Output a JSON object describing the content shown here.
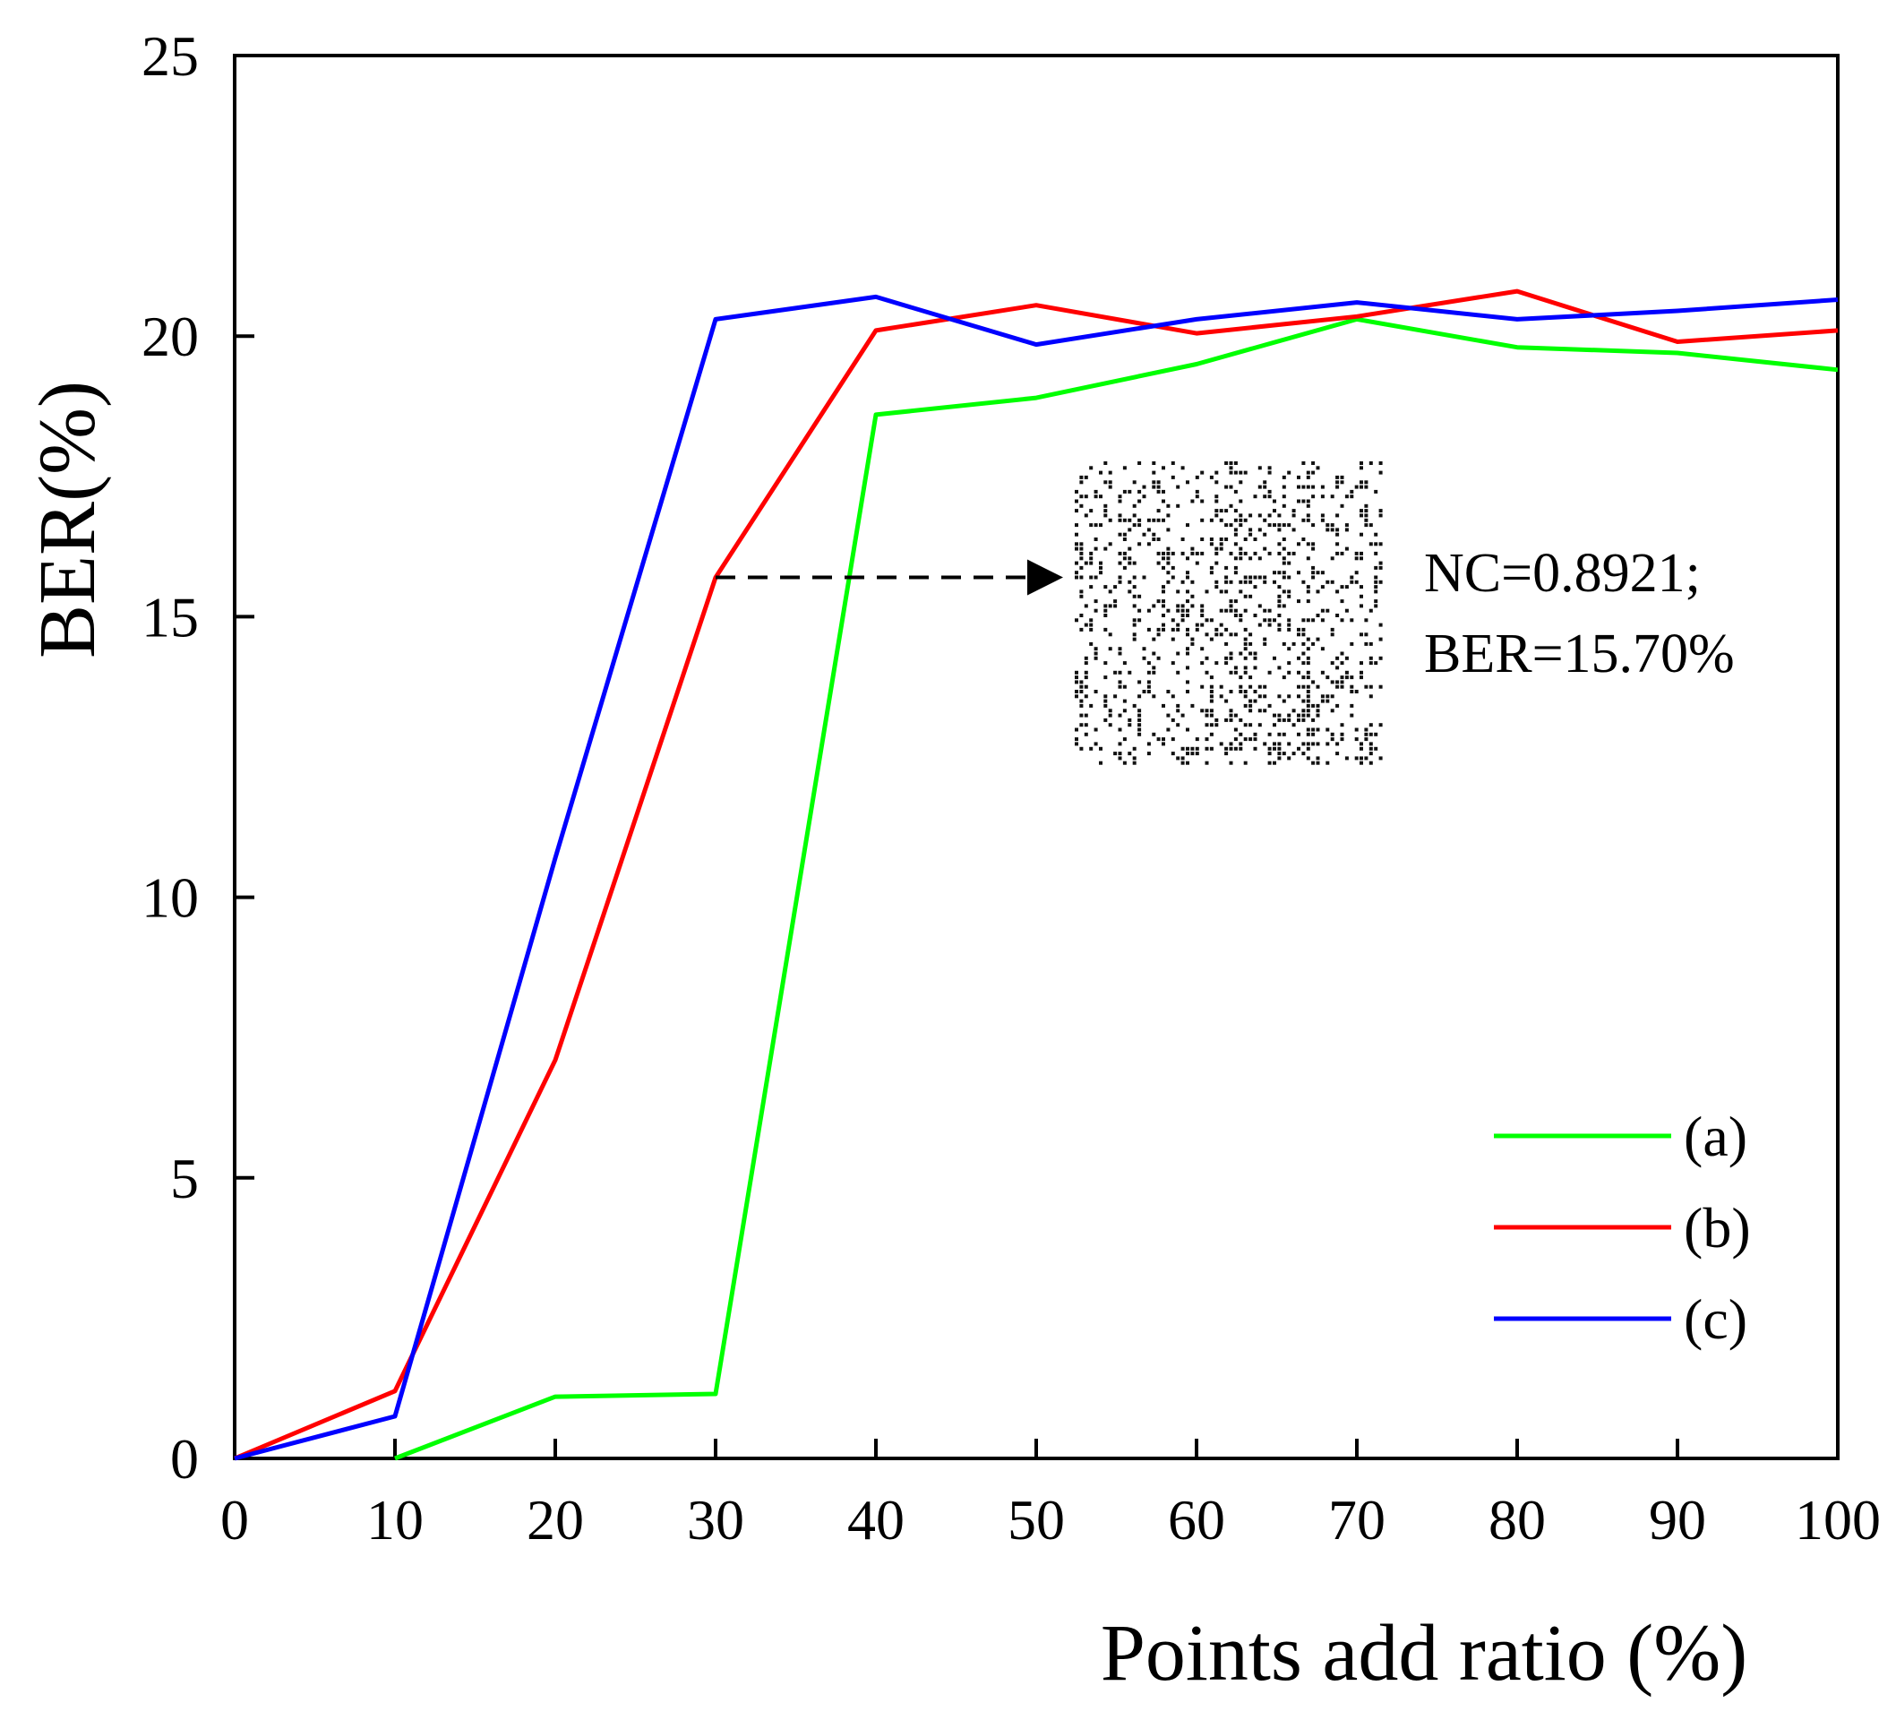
{
  "chart_data": {
    "type": "line",
    "title": "",
    "xlabel": "Points add ratio (%)",
    "ylabel": "BER(%)",
    "xlim": [
      0,
      100
    ],
    "ylim": [
      0,
      25
    ],
    "x_ticks": [
      "0",
      "10",
      "20",
      "30",
      "40",
      "50",
      "60",
      "70",
      "80",
      "90",
      "100"
    ],
    "y_ticks": [
      "0",
      "5",
      "10",
      "15",
      "20",
      "25"
    ],
    "grid": false,
    "legend_position": "bottom-right",
    "x": [
      0,
      10,
      20,
      30,
      40,
      50,
      60,
      70,
      80,
      90,
      100
    ],
    "series": [
      {
        "name": "(a)",
        "color": "#00ff00",
        "values": [
          null,
          0.0,
          1.1,
          1.15,
          18.6,
          18.9,
          19.5,
          20.3,
          19.8,
          19.7,
          19.4
        ]
      },
      {
        "name": "(b)",
        "color": "#ff0000",
        "values": [
          0.0,
          1.2,
          7.1,
          15.7,
          20.1,
          20.55,
          20.05,
          20.35,
          20.8,
          19.9,
          20.1
        ]
      },
      {
        "name": "(c)",
        "color": "#0000ff",
        "values": [
          0.0,
          0.75,
          10.7,
          20.3,
          20.7,
          19.85,
          20.3,
          20.6,
          20.3,
          20.45,
          20.65
        ]
      }
    ],
    "annotation": {
      "point_x": 30,
      "point_y": 15.7,
      "line1": "NC=0.8921;",
      "line2": "BER=15.70%",
      "inset": "extracted watermark image (noisy binary pattern)"
    }
  }
}
